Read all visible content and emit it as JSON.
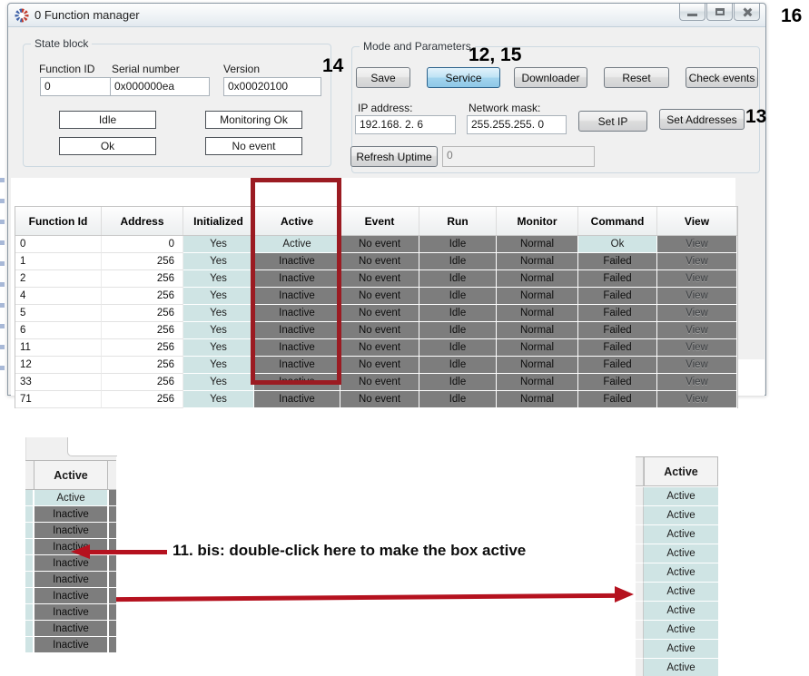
{
  "window": {
    "title": "0 Function manager"
  },
  "icons": {
    "app": "gear-icon",
    "minimize": "minimize-icon",
    "maximize": "maximize-icon",
    "close": "close-icon"
  },
  "annotations": {
    "top_right": "16",
    "save": "14",
    "service": "12, 15",
    "set_addresses": "13",
    "instruction": "11. bis: double-click here to make the box active"
  },
  "state_block": {
    "legend": "State block",
    "function_id": {
      "label": "Function ID",
      "value": "0"
    },
    "serial_number": {
      "label": "Serial number",
      "value": "0x000000ea"
    },
    "version": {
      "label": "Version",
      "value": "0x00020100"
    },
    "status_boxes": [
      "Idle",
      "Monitoring Ok",
      "Ok",
      "No event"
    ]
  },
  "mode_params": {
    "legend": "Mode and Parameters",
    "buttons": [
      {
        "label": "Save",
        "active": false
      },
      {
        "label": "Service",
        "active": true
      },
      {
        "label": "Downloader",
        "active": false
      },
      {
        "label": "Reset",
        "active": false
      },
      {
        "label": "Check events",
        "active": false
      }
    ],
    "ip_address": {
      "label": "IP address:",
      "value": "192.168. 2. 6"
    },
    "network_mask": {
      "label": "Network mask:",
      "value": "255.255.255. 0"
    },
    "set_ip_label": "Set IP",
    "set_addresses_label": "Set Addresses",
    "refresh_uptime_label": "Refresh Uptime",
    "uptime_value": "0"
  },
  "table": {
    "columns": [
      "Function Id",
      "Address",
      "Initialized",
      "Active",
      "Event",
      "Run",
      "Monitor",
      "Command",
      "View"
    ],
    "rows": [
      {
        "id": "0",
        "address": "0",
        "initialized": "Yes",
        "active": "Active",
        "event": "No event",
        "run": "Idle",
        "monitor": "Normal",
        "command": "Ok",
        "view": "View"
      },
      {
        "id": "1",
        "address": "256",
        "initialized": "Yes",
        "active": "Inactive",
        "event": "No event",
        "run": "Idle",
        "monitor": "Normal",
        "command": "Failed",
        "view": "View"
      },
      {
        "id": "2",
        "address": "256",
        "initialized": "Yes",
        "active": "Inactive",
        "event": "No event",
        "run": "Idle",
        "monitor": "Normal",
        "command": "Failed",
        "view": "View"
      },
      {
        "id": "4",
        "address": "256",
        "initialized": "Yes",
        "active": "Inactive",
        "event": "No event",
        "run": "Idle",
        "monitor": "Normal",
        "command": "Failed",
        "view": "View"
      },
      {
        "id": "5",
        "address": "256",
        "initialized": "Yes",
        "active": "Inactive",
        "event": "No event",
        "run": "Idle",
        "monitor": "Normal",
        "command": "Failed",
        "view": "View"
      },
      {
        "id": "6",
        "address": "256",
        "initialized": "Yes",
        "active": "Inactive",
        "event": "No event",
        "run": "Idle",
        "monitor": "Normal",
        "command": "Failed",
        "view": "View"
      },
      {
        "id": "11",
        "address": "256",
        "initialized": "Yes",
        "active": "Inactive",
        "event": "No event",
        "run": "Idle",
        "monitor": "Normal",
        "command": "Failed",
        "view": "View"
      },
      {
        "id": "12",
        "address": "256",
        "initialized": "Yes",
        "active": "Inactive",
        "event": "No event",
        "run": "Idle",
        "monitor": "Normal",
        "command": "Failed",
        "view": "View"
      },
      {
        "id": "33",
        "address": "256",
        "initialized": "Yes",
        "active": "Inactive",
        "event": "No event",
        "run": "Idle",
        "monitor": "Normal",
        "command": "Failed",
        "view": "View"
      },
      {
        "id": "71",
        "address": "256",
        "initialized": "Yes",
        "active": "Inactive",
        "event": "No event",
        "run": "Idle",
        "monitor": "Normal",
        "command": "Failed",
        "view": "View"
      }
    ]
  },
  "crop_left": {
    "header": "Active",
    "rows": [
      "Active",
      "Inactive",
      "Inactive",
      "Inactive",
      "Inactive",
      "Inactive",
      "Inactive",
      "Inactive",
      "Inactive",
      "Inactive"
    ]
  },
  "crop_right": {
    "header": "Active",
    "rows": [
      "Active",
      "Active",
      "Active",
      "Active",
      "Active",
      "Active",
      "Active",
      "Active",
      "Active",
      "Active"
    ]
  },
  "colors": {
    "active_teal": "#cfe4e4",
    "inactive_gray": "#7d7d7d",
    "annotation_red": "#9b1b22",
    "arrow_red": "#b5121f",
    "service_blue": "#bfe3f5"
  }
}
